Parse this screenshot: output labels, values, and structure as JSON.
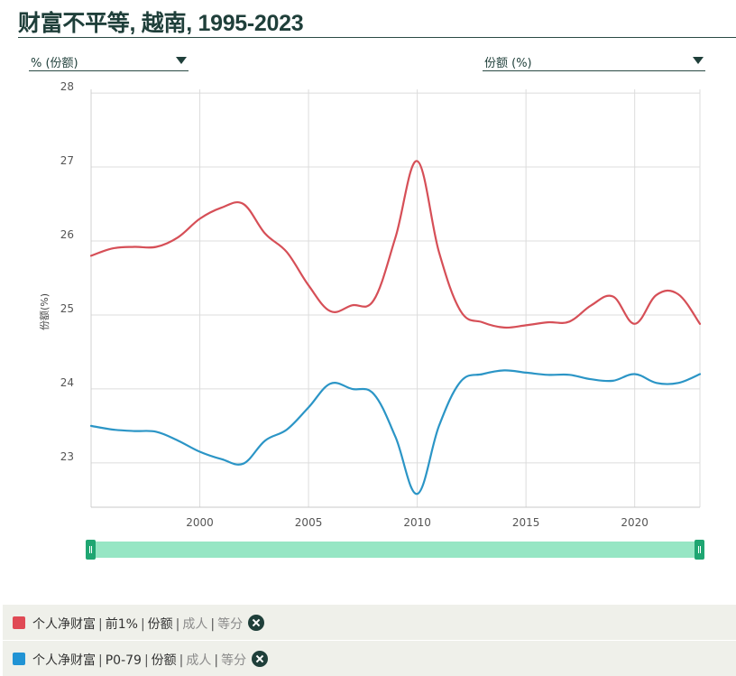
{
  "page": {
    "title": "财富不平等, 越南, 1995-2023"
  },
  "selectors": {
    "left": {
      "label": "% (份额)"
    },
    "right": {
      "label": "份额 (%)"
    }
  },
  "chart_data": {
    "type": "line",
    "title": "",
    "ylabel": "份额(%)",
    "xlabel": "",
    "x_ticks": [
      2000,
      2005,
      2010,
      2015,
      2020
    ],
    "y_ticks": [
      23,
      24,
      25,
      26,
      27,
      28
    ],
    "xlim": [
      1995,
      2023
    ],
    "ylim": [
      22.4,
      28.05
    ],
    "grid": true,
    "x": [
      1995,
      1996,
      1997,
      1998,
      1999,
      2000,
      2001,
      2002,
      2003,
      2004,
      2005,
      2006,
      2007,
      2008,
      2009,
      2010,
      2011,
      2012,
      2013,
      2014,
      2015,
      2016,
      2017,
      2018,
      2019,
      2020,
      2021,
      2022,
      2023
    ],
    "series": [
      {
        "name": "",
        "color": "#d64f57",
        "values": [
          25.8,
          25.9,
          25.92,
          25.92,
          26.05,
          26.3,
          26.45,
          26.5,
          26.1,
          25.85,
          25.4,
          25.05,
          25.13,
          25.2,
          26.05,
          27.08,
          25.85,
          25.05,
          24.9,
          24.83,
          24.86,
          24.9,
          24.91,
          25.13,
          25.25,
          24.88,
          25.27,
          25.28,
          24.88
        ]
      },
      {
        "name": "",
        "color": "#2b95c6",
        "values": [
          23.5,
          23.45,
          23.43,
          23.42,
          23.3,
          23.15,
          23.05,
          22.99,
          23.3,
          23.45,
          23.75,
          24.07,
          24.0,
          23.93,
          23.35,
          22.58,
          23.5,
          24.1,
          24.2,
          24.25,
          24.22,
          24.19,
          24.19,
          24.13,
          24.11,
          24.2,
          24.08,
          24.08,
          24.2
        ]
      }
    ]
  },
  "legend": [
    {
      "color": "#e04a55",
      "parts": [
        "个人净财富",
        "前1%",
        "份额",
        "成人",
        "等分"
      ]
    },
    {
      "color": "#2193d4",
      "parts": [
        "个人净财富",
        "P0-79",
        "份额",
        "成人",
        "等分"
      ]
    }
  ]
}
